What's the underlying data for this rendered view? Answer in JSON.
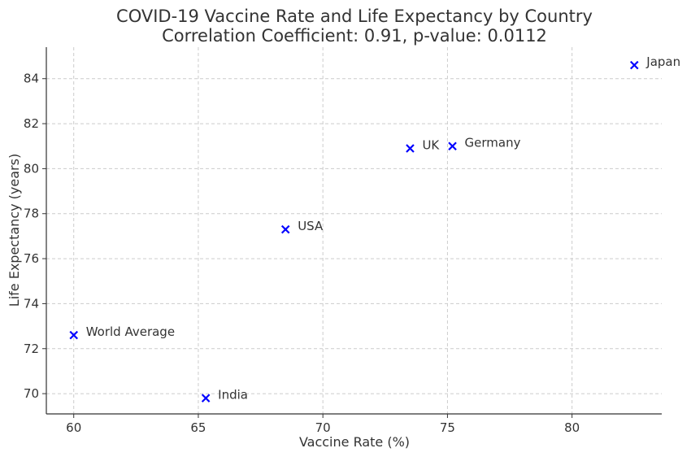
{
  "chart_data": {
    "type": "scatter",
    "title": "COVID-19 Vaccine Rate and Life Expectancy by Country",
    "subtitle": "Correlation Coefficient: 0.91, p-value: 0.0112",
    "xlabel": "Vaccine Rate (%)",
    "ylabel": "Life Expectancy (years)",
    "xlim": [
      58.9,
      83.6
    ],
    "ylim": [
      69.1,
      85.4
    ],
    "xticks": [
      60,
      65,
      70,
      75,
      80
    ],
    "yticks": [
      70,
      72,
      74,
      76,
      78,
      80,
      82,
      84
    ],
    "grid": true,
    "marker": "x",
    "marker_color": "#0000ff",
    "points": [
      {
        "label": "World Average",
        "x": 60.0,
        "y": 72.6
      },
      {
        "label": "India",
        "x": 65.3,
        "y": 69.8
      },
      {
        "label": "USA",
        "x": 68.5,
        "y": 77.3
      },
      {
        "label": "UK",
        "x": 73.5,
        "y": 80.9
      },
      {
        "label": "Germany",
        "x": 75.2,
        "y": 81.0
      },
      {
        "label": "Japan",
        "x": 82.5,
        "y": 84.6
      }
    ]
  }
}
